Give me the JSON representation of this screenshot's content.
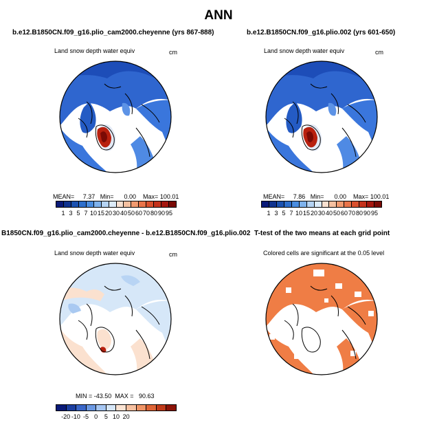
{
  "title": "ANN",
  "panels": [
    {
      "title": "b.e12.B1850CN.f09_g16.plio_cam2000.cheyenne (yrs 867-888)",
      "variable": "Land snow depth water equiv",
      "units": "cm",
      "stats": "MEAN=     7.37   Min=      0.00    Max= 100.01",
      "colorbar": {
        "colors": [
          "#0a1a78",
          "#10338f",
          "#1c52b0",
          "#2e6fcc",
          "#4a8de0",
          "#7fb2ec",
          "#b5d3f3",
          "#dcebf9",
          "#f8e0d0",
          "#f5c0a0",
          "#f19a70",
          "#e9744a",
          "#d9502e",
          "#c4321c",
          "#a5170f",
          "#7a0a05"
        ],
        "labels": [
          "1",
          "3",
          "5",
          "7",
          "10",
          "15",
          "20",
          "30",
          "40",
          "50",
          "60",
          "70",
          "80",
          "90",
          "95"
        ]
      }
    },
    {
      "title": "b.e12.B1850CN.f09_g16.plio.002 (yrs 601-650)",
      "variable": "Land snow depth water equiv",
      "units": "cm",
      "stats": "MEAN=     7.86   Min=      0.00    Max= 100.01",
      "colorbar": {
        "colors": [
          "#0a1a78",
          "#10338f",
          "#1c52b0",
          "#2e6fcc",
          "#4a8de0",
          "#7fb2ec",
          "#b5d3f3",
          "#dcebf9",
          "#f8e0d0",
          "#f5c0a0",
          "#f19a70",
          "#e9744a",
          "#d9502e",
          "#c4321c",
          "#a5170f",
          "#7a0a05"
        ],
        "labels": [
          "1",
          "3",
          "5",
          "7",
          "10",
          "15",
          "20",
          "30",
          "40",
          "50",
          "60",
          "70",
          "80",
          "90",
          "95"
        ]
      }
    },
    {
      "title": "B1850CN.f09_g16.plio_cam2000.cheyenne - b.e12.B1850CN.f09_g16.plio.002",
      "variable": "Land snow depth water equiv",
      "units": "cm",
      "stats": "MIN = -43.50  MAX =   90.63",
      "colorbar": {
        "colors": [
          "#0a1a78",
          "#1c3fa0",
          "#3a66c8",
          "#6b98e2",
          "#a6c6f2",
          "#d6e6f8",
          "#fbe3d3",
          "#f6c0a0",
          "#ef9466",
          "#de6436",
          "#c03a1a",
          "#8c1408"
        ],
        "labels": [
          "-20",
          "-10",
          "-5",
          "0",
          "5",
          "10",
          "20"
        ]
      }
    },
    {
      "title": "T-test of the two means at each grid point",
      "variable": "Colored cells are significant at the 0.05 level"
    }
  ],
  "colors": {
    "land_blue": "#3b73d6",
    "land_deep_blue": "#1e4fb8",
    "greenland_red": "#b8200e",
    "diff_light_blue": "#d5e6f7",
    "diff_peach": "#fbe3d3",
    "ttest_orange": "#ef7d45"
  }
}
